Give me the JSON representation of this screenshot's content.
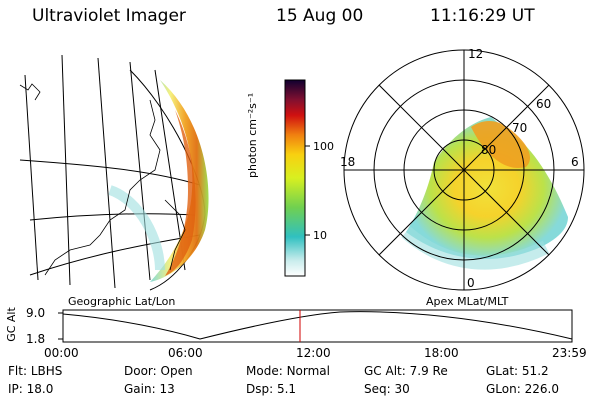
{
  "header": {
    "instrument": "Ultraviolet Imager",
    "date": "15 Aug 00",
    "time": "11:16:29 UT"
  },
  "colorbar": {
    "unit_label": "photon cm⁻²s⁻¹",
    "ticks": [
      "100",
      "10"
    ]
  },
  "polar_plot": {
    "mlt_labels": [
      "12",
      "18",
      "6",
      "0"
    ],
    "lat_labels": [
      "60",
      "70",
      "80"
    ]
  },
  "panel_labels": {
    "left": "Geographic Lat/Lon",
    "right": "Apex MLat/MLT"
  },
  "altitude_plot": {
    "ylabel": "GC Alt",
    "y_ticks": [
      "9.0",
      "1.8"
    ],
    "x_ticks": [
      "00:00",
      "06:00",
      "12:00",
      "18:00",
      "23:59"
    ],
    "current_time_marker": "11:16:29"
  },
  "info": {
    "row1": [
      {
        "label": "Flt:",
        "value": "LBHS"
      },
      {
        "label": "Door:",
        "value": "Open"
      },
      {
        "label": "Mode:",
        "value": "Normal"
      },
      {
        "label": "GC Alt:",
        "value": "7.9 Re"
      },
      {
        "label": "GLat:",
        "value": "51.2"
      }
    ],
    "row2": [
      {
        "label": "IP:",
        "value": "18.0"
      },
      {
        "label": "Gain:",
        "value": "13"
      },
      {
        "label": "Dsp:",
        "value": "5.1"
      },
      {
        "label": "Seq:",
        "value": "30"
      },
      {
        "label": "GLon:",
        "value": "226.0"
      }
    ]
  }
}
